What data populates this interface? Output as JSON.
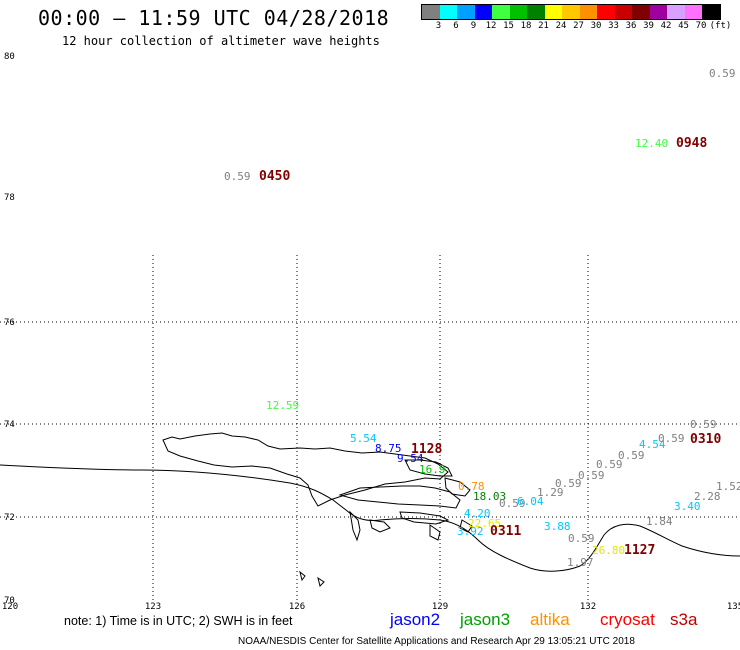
{
  "header": {
    "title": "00:00 – 11:59 UTC 04/28/2018",
    "subtitle": "12 hour collection of altimeter wave heights"
  },
  "legend": {
    "unit_label": "(ft)",
    "bins": [
      {
        "label": "3",
        "color": "#808080"
      },
      {
        "label": "6",
        "color": "#00ffff"
      },
      {
        "label": "9",
        "color": "#00a0ff"
      },
      {
        "label": "12",
        "color": "#0000ff"
      },
      {
        "label": "15",
        "color": "#40ff40"
      },
      {
        "label": "18",
        "color": "#00c000"
      },
      {
        "label": "21",
        "color": "#008000"
      },
      {
        "label": "24",
        "color": "#ffff00"
      },
      {
        "label": "27",
        "color": "#ffc800"
      },
      {
        "label": "30",
        "color": "#ff9000"
      },
      {
        "label": "33",
        "color": "#ff0000"
      },
      {
        "label": "36",
        "color": "#c80000"
      },
      {
        "label": "39",
        "color": "#800000"
      },
      {
        "label": "42",
        "color": "#a000a0"
      },
      {
        "label": "45",
        "color": "#d8a0ff"
      },
      {
        "label": "70",
        "color": "#ff70ff"
      },
      {
        "label": "",
        "color": "#000000"
      }
    ]
  },
  "map": {
    "lat_ticks": [
      "80",
      "78",
      "76",
      "74",
      "72",
      "70"
    ],
    "lon_ticks": [
      "120",
      "123",
      "126",
      "129",
      "132",
      "135"
    ]
  },
  "measurements": [
    {
      "text": "0.59",
      "color": "#808080"
    },
    {
      "text": "12.40",
      "color": "#40ff40"
    },
    {
      "text": "0948",
      "color": "#800000"
    },
    {
      "text": "0.59",
      "color": "#808080"
    },
    {
      "text": "0450",
      "color": "#800000"
    },
    {
      "text": "12.59",
      "color": "#40ff40"
    },
    {
      "text": "5.54",
      "color": "#00c8ff"
    },
    {
      "text": "8.75",
      "color": "#0000ff"
    },
    {
      "text": "9.54",
      "color": "#0000ff"
    },
    {
      "text": "1128",
      "color": "#800000"
    },
    {
      "text": "16.9",
      "color": "#00c000"
    },
    {
      "text": "0.78",
      "color": "#ff9000"
    },
    {
      "text": "18.03",
      "color": "#008000"
    },
    {
      "text": "0.59",
      "color": "#808080"
    },
    {
      "text": "6.04",
      "color": "#00c8ff"
    },
    {
      "text": "4.20",
      "color": "#00c8ff"
    },
    {
      "text": "1.29",
      "color": "#808080"
    },
    {
      "text": "0.59",
      "color": "#808080"
    },
    {
      "text": "0.59",
      "color": "#808080"
    },
    {
      "text": "0.59",
      "color": "#808080"
    },
    {
      "text": "0.59",
      "color": "#808080"
    },
    {
      "text": "4.54",
      "color": "#00c8ff"
    },
    {
      "text": "0.59",
      "color": "#808080"
    },
    {
      "text": "0.59",
      "color": "#808080"
    },
    {
      "text": "0310",
      "color": "#800000"
    },
    {
      "text": "22.65",
      "color": "#e6e600"
    },
    {
      "text": "3.92",
      "color": "#00c8ff"
    },
    {
      "text": "0311",
      "color": "#800000"
    },
    {
      "text": "3.88",
      "color": "#00c8ff"
    },
    {
      "text": "0.59",
      "color": "#808080"
    },
    {
      "text": "1.97",
      "color": "#808080"
    },
    {
      "text": "26.80",
      "color": "#e6e600"
    },
    {
      "text": "1127",
      "color": "#800000"
    },
    {
      "text": "1.84",
      "color": "#808080"
    },
    {
      "text": "3.40",
      "color": "#00c8ff"
    },
    {
      "text": "2.28",
      "color": "#808080"
    },
    {
      "text": "1.52",
      "color": "#808080"
    }
  ],
  "footer": {
    "note": "note: 1) Time is in UTC; 2) SWH is in feet",
    "satellites": [
      {
        "name": "jason2",
        "color": "#0000ff"
      },
      {
        "name": "jason3",
        "color": "#00a000"
      },
      {
        "name": "altika",
        "color": "#ff9000"
      },
      {
        "name": "cryosat",
        "color": "#ff0000"
      },
      {
        "name": "s3a",
        "color": "#c00000"
      }
    ],
    "credit": "NOAA/NESDIS Center for Satellite Applications and Research    Apr 29 13:05:21 UTC 2018"
  }
}
